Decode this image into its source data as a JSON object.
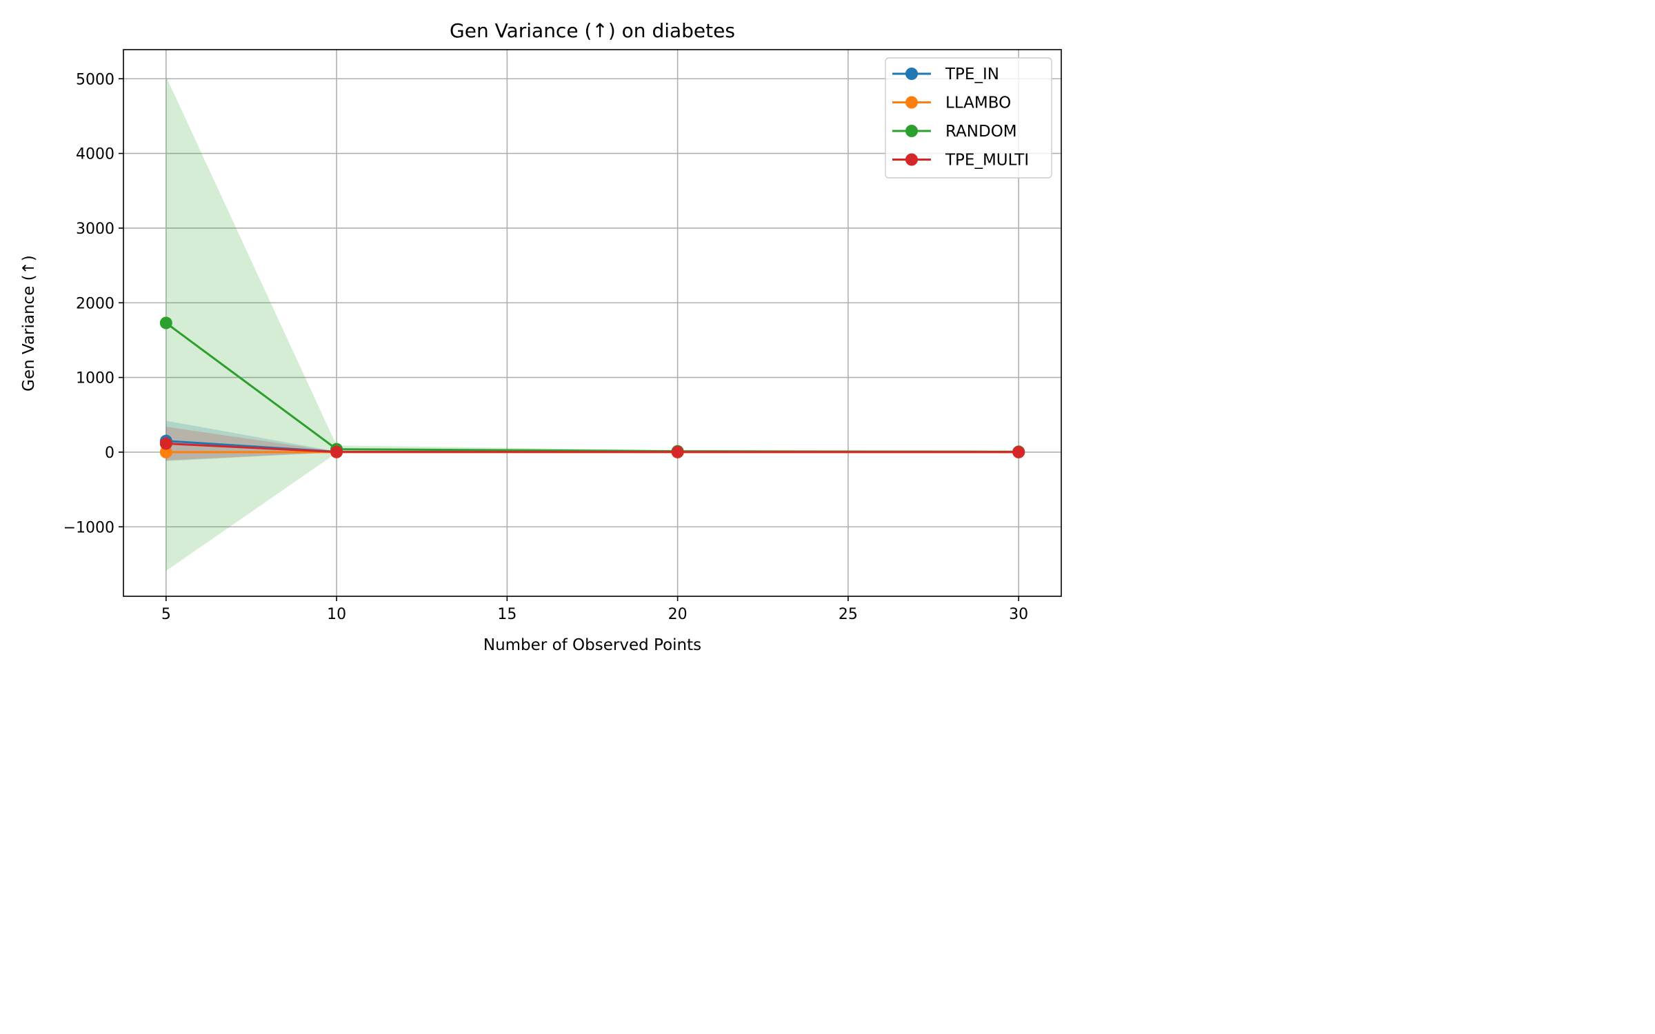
{
  "chart_data": {
    "type": "line",
    "title": "Gen Variance (↑) on diabetes",
    "xlabel": "Number of Observed Points",
    "ylabel": "Gen Variance (↑)",
    "xlim": [
      3.75,
      31.25
    ],
    "ylim": [
      -1930,
      5390
    ],
    "xticks": [
      5,
      10,
      15,
      20,
      25,
      30
    ],
    "yticks": [
      -1000,
      0,
      1000,
      2000,
      3000,
      4000,
      5000
    ],
    "xtick_labels": [
      "5",
      "10",
      "15",
      "20",
      "25",
      "30"
    ],
    "ytick_labels": [
      "−1000",
      "0",
      "1000",
      "2000",
      "3000",
      "4000",
      "5000"
    ],
    "grid": true,
    "legend_position": "top-right",
    "x": [
      5,
      10,
      20,
      30
    ],
    "series": [
      {
        "name": "TPE_IN",
        "color": "#1f77b4",
        "values": [
          150,
          5,
          3,
          2
        ],
        "lower": [
          -120,
          0,
          0,
          0
        ],
        "upper": [
          420,
          10,
          6,
          4
        ]
      },
      {
        "name": "LLAMBO",
        "color": "#ff7f0e",
        "values": [
          0,
          0,
          0,
          0
        ],
        "lower": [
          -10,
          -1,
          -1,
          -1
        ],
        "upper": [
          10,
          1,
          1,
          1
        ]
      },
      {
        "name": "RANDOM",
        "color": "#2ca02c",
        "values": [
          1730,
          40,
          12,
          6
        ],
        "lower": [
          -1590,
          -10,
          0,
          0
        ],
        "upper": [
          5030,
          90,
          25,
          12
        ]
      },
      {
        "name": "TPE_MULTI",
        "color": "#d62728",
        "values": [
          115,
          3,
          2,
          1
        ],
        "lower": [
          -110,
          -2,
          0,
          0
        ],
        "upper": [
          340,
          8,
          4,
          2
        ]
      }
    ]
  }
}
